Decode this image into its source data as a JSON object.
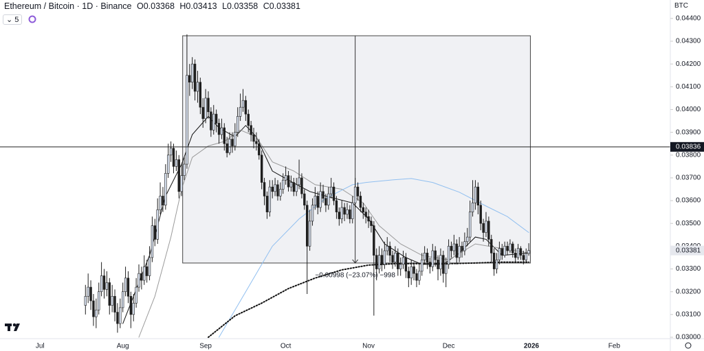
{
  "header": {
    "symbol": "Ethereum / Bitcoin · 1D · Binance",
    "ohlc_keys": [
      "O",
      "H",
      "L",
      "C"
    ],
    "indicator_count": "5",
    "currency": "BTC"
  },
  "chart_data": {
    "type": "candlestick",
    "open": [
      0.0314,
      0.0318,
      0.0322,
      0.0316,
      0.0309,
      0.0312,
      0.032,
      0.0327,
      0.0321,
      0.0324,
      0.0314,
      0.0318,
      0.0311,
      0.0306,
      0.0313,
      0.032,
      0.0326,
      0.0318,
      0.031,
      0.0315,
      0.0322,
      0.0328,
      0.0325,
      0.0331,
      0.0327,
      0.0335,
      0.0349,
      0.0343,
      0.0356,
      0.0362,
      0.0358,
      0.0372,
      0.038,
      0.0383,
      0.0375,
      0.0378,
      0.0364,
      0.0371,
      0.0376,
      0.0415,
      0.0412,
      0.042,
      0.0408,
      0.0412,
      0.0401,
      0.0396,
      0.0405,
      0.0399,
      0.0391,
      0.0398,
      0.0394,
      0.0389,
      0.0392,
      0.0385,
      0.0381,
      0.0387,
      0.0384,
      0.039,
      0.0397,
      0.0401,
      0.0404,
      0.0398,
      0.0393,
      0.0389,
      0.0386,
      0.0385,
      0.038,
      0.0368,
      0.0362,
      0.0355,
      0.0366,
      0.0364,
      0.0367,
      0.0362,
      0.0365,
      0.0369,
      0.0371,
      0.0366,
      0.0368,
      0.0364,
      0.0367,
      0.037,
      0.0363,
      0.0358,
      0.034,
      0.0351,
      0.0358,
      0.0362,
      0.0357,
      0.0364,
      0.0361,
      0.0358,
      0.0363,
      0.0366,
      0.036,
      0.0355,
      0.0352,
      0.0357,
      0.0354,
      0.0356,
      0.0352,
      0.0359,
      0.0366,
      0.0362,
      0.0357,
      0.0355,
      0.0353,
      0.0351,
      0.0349,
      0.0336,
      0.033,
      0.0336,
      0.0332,
      0.0338,
      0.034,
      0.0336,
      0.0333,
      0.0337,
      0.033,
      0.0332,
      0.0335,
      0.0329,
      0.0326,
      0.0331,
      0.0328,
      0.0325,
      0.0329,
      0.0334,
      0.0337,
      0.0333,
      0.0331,
      0.0338,
      0.0334,
      0.033,
      0.0336,
      0.0328,
      0.0332,
      0.034,
      0.0338,
      0.0341,
      0.0335,
      0.034,
      0.0338,
      0.0342,
      0.0344,
      0.0355,
      0.0359,
      0.0366,
      0.0358,
      0.035,
      0.0346,
      0.0351,
      0.0343,
      0.0337,
      0.033,
      0.0334,
      0.0339,
      0.0336,
      0.034,
      0.0338,
      0.0341,
      0.0337,
      0.0335,
      0.0339,
      0.0336,
      0.0334,
      0.03368
    ],
    "high": [
      0.0323,
      0.0328,
      0.0325,
      0.0319,
      0.0317,
      0.0324,
      0.0333,
      0.033,
      0.0329,
      0.0326,
      0.0323,
      0.0321,
      0.0315,
      0.0317,
      0.0324,
      0.0331,
      0.0329,
      0.032,
      0.0319,
      0.0326,
      0.0332,
      0.0331,
      0.0336,
      0.0334,
      0.034,
      0.0353,
      0.0352,
      0.0361,
      0.0368,
      0.0366,
      0.0376,
      0.0385,
      0.0386,
      0.0385,
      0.0382,
      0.038,
      0.0376,
      0.0379,
      0.0433,
      0.042,
      0.0423,
      0.0422,
      0.0417,
      0.0414,
      0.0405,
      0.0409,
      0.0408,
      0.0401,
      0.0402,
      0.04,
      0.0396,
      0.0396,
      0.0394,
      0.0388,
      0.039,
      0.039,
      0.0394,
      0.0401,
      0.0407,
      0.0409,
      0.0406,
      0.04,
      0.0395,
      0.0392,
      0.039,
      0.0387,
      0.0382,
      0.037,
      0.0364,
      0.0369,
      0.0369,
      0.037,
      0.0369,
      0.0368,
      0.0372,
      0.0375,
      0.0373,
      0.0371,
      0.037,
      0.037,
      0.0378,
      0.0372,
      0.0365,
      0.036,
      0.0356,
      0.0361,
      0.0366,
      0.0364,
      0.0368,
      0.0367,
      0.0363,
      0.0366,
      0.037,
      0.0368,
      0.0362,
      0.0357,
      0.036,
      0.0359,
      0.0359,
      0.0358,
      0.0362,
      0.037,
      0.0368,
      0.0364,
      0.0359,
      0.0357,
      0.0356,
      0.0353,
      0.0351,
      0.0339,
      0.034,
      0.0339,
      0.0342,
      0.0344,
      0.0342,
      0.0338,
      0.034,
      0.0339,
      0.0335,
      0.0338,
      0.0337,
      0.0331,
      0.0334,
      0.0333,
      0.033,
      0.0332,
      0.0337,
      0.034,
      0.0339,
      0.0335,
      0.0341,
      0.034,
      0.0336,
      0.0339,
      0.0338,
      0.0335,
      0.0343,
      0.0342,
      0.0345,
      0.0343,
      0.0344,
      0.0342,
      0.0346,
      0.0348,
      0.036,
      0.0369,
      0.0369,
      0.0368,
      0.036,
      0.0352,
      0.0355,
      0.0353,
      0.0345,
      0.0339,
      0.0337,
      0.0342,
      0.0341,
      0.0342,
      0.0342,
      0.0343,
      0.0342,
      0.0339,
      0.0341,
      0.034,
      0.0338,
      0.0339,
      0.03413
    ],
    "low": [
      0.031,
      0.0315,
      0.0312,
      0.0305,
      0.0304,
      0.031,
      0.0318,
      0.0317,
      0.0318,
      0.031,
      0.0311,
      0.0307,
      0.0302,
      0.0304,
      0.0311,
      0.0318,
      0.0315,
      0.0304,
      0.0307,
      0.0313,
      0.032,
      0.0321,
      0.0323,
      0.0324,
      0.0325,
      0.0333,
      0.034,
      0.0341,
      0.0354,
      0.0355,
      0.0356,
      0.037,
      0.0377,
      0.0372,
      0.0373,
      0.0361,
      0.0362,
      0.0369,
      0.0374,
      0.0406,
      0.0409,
      0.0404,
      0.0403,
      0.0398,
      0.0392,
      0.0394,
      0.0396,
      0.0388,
      0.0389,
      0.039,
      0.0385,
      0.0387,
      0.0382,
      0.0379,
      0.038,
      0.0381,
      0.0382,
      0.0388,
      0.0395,
      0.0399,
      0.0395,
      0.039,
      0.0386,
      0.0383,
      0.0382,
      0.0378,
      0.0365,
      0.0358,
      0.0352,
      0.0353,
      0.0361,
      0.0362,
      0.036,
      0.036,
      0.0363,
      0.0367,
      0.0364,
      0.0364,
      0.0362,
      0.0362,
      0.0365,
      0.0361,
      0.0356,
      0.0319,
      0.0338,
      0.0349,
      0.0356,
      0.0354,
      0.0355,
      0.0359,
      0.0355,
      0.0356,
      0.0361,
      0.0358,
      0.0352,
      0.0349,
      0.035,
      0.0351,
      0.0352,
      0.035,
      0.035,
      0.0357,
      0.036,
      0.0355,
      0.0352,
      0.035,
      0.0348,
      0.0346,
      0.03095,
      0.0325,
      0.0328,
      0.0329,
      0.033,
      0.0336,
      0.0333,
      0.033,
      0.0331,
      0.0327,
      0.0327,
      0.033,
      0.0326,
      0.0322,
      0.0323,
      0.0325,
      0.0322,
      0.0323,
      0.0327,
      0.0332,
      0.033,
      0.0328,
      0.0329,
      0.0331,
      0.0325,
      0.0327,
      0.0324,
      0.0322,
      0.033,
      0.0335,
      0.0336,
      0.0332,
      0.0333,
      0.0335,
      0.0336,
      0.034,
      0.0342,
      0.0353,
      0.0356,
      0.0354,
      0.0347,
      0.0342,
      0.0344,
      0.034,
      0.0333,
      0.0327,
      0.0328,
      0.0332,
      0.0334,
      0.0335,
      0.0336,
      0.0337,
      0.0335,
      0.0333,
      0.0334,
      0.0334,
      0.0332,
      0.0333,
      0.03358
    ],
    "close": [
      0.0318,
      0.0322,
      0.0316,
      0.0309,
      0.0312,
      0.032,
      0.0327,
      0.0321,
      0.0324,
      0.0314,
      0.0318,
      0.0311,
      0.0306,
      0.0313,
      0.032,
      0.0326,
      0.0318,
      0.031,
      0.0315,
      0.0322,
      0.0328,
      0.0325,
      0.0331,
      0.0327,
      0.0335,
      0.0349,
      0.0343,
      0.0356,
      0.0362,
      0.0358,
      0.0372,
      0.038,
      0.0383,
      0.0375,
      0.0378,
      0.0364,
      0.0371,
      0.0376,
      0.0415,
      0.0412,
      0.042,
      0.0408,
      0.0412,
      0.0401,
      0.0396,
      0.0405,
      0.0399,
      0.0391,
      0.0398,
      0.0394,
      0.0389,
      0.0392,
      0.0385,
      0.0381,
      0.0387,
      0.0384,
      0.039,
      0.0397,
      0.0401,
      0.0404,
      0.0398,
      0.0393,
      0.0389,
      0.0386,
      0.0385,
      0.038,
      0.0368,
      0.0362,
      0.0355,
      0.0366,
      0.0364,
      0.0367,
      0.0362,
      0.0365,
      0.0369,
      0.0371,
      0.0366,
      0.0368,
      0.0364,
      0.0367,
      0.037,
      0.0363,
      0.0358,
      0.034,
      0.0351,
      0.0358,
      0.0362,
      0.0357,
      0.0364,
      0.0361,
      0.0358,
      0.0363,
      0.0366,
      0.036,
      0.0355,
      0.0352,
      0.0357,
      0.0354,
      0.0356,
      0.0352,
      0.0359,
      0.0366,
      0.0362,
      0.0357,
      0.0355,
      0.0353,
      0.0351,
      0.0349,
      0.0336,
      0.033,
      0.0336,
      0.0332,
      0.0338,
      0.034,
      0.0336,
      0.0333,
      0.0337,
      0.033,
      0.0332,
      0.0335,
      0.0329,
      0.0326,
      0.0331,
      0.0328,
      0.0325,
      0.0329,
      0.0334,
      0.0337,
      0.0333,
      0.0331,
      0.0338,
      0.0334,
      0.033,
      0.0336,
      0.0328,
      0.0332,
      0.034,
      0.0338,
      0.0341,
      0.0335,
      0.034,
      0.0338,
      0.0342,
      0.0344,
      0.0355,
      0.0359,
      0.0366,
      0.0358,
      0.035,
      0.0346,
      0.0351,
      0.0343,
      0.0337,
      0.033,
      0.0334,
      0.0339,
      0.0336,
      0.034,
      0.0338,
      0.0341,
      0.0337,
      0.0335,
      0.0339,
      0.0336,
      0.0334,
      0.03368,
      0.03381
    ],
    "up_color": "#d9e2f1",
    "down_color": "#1e1e1e",
    "outline_color": "#1e1e1e",
    "ylim": [
      0.02994,
      0.04481
    ],
    "yticks": [
      {
        "value": 0.03,
        "label": "0.03000"
      },
      {
        "value": 0.031,
        "label": "0.03100"
      },
      {
        "value": 0.032,
        "label": "0.03200"
      },
      {
        "value": 0.033,
        "label": "0.03300"
      },
      {
        "value": 0.034,
        "label": "0.03400"
      },
      {
        "value": 0.035,
        "label": "0.03500"
      },
      {
        "value": 0.036,
        "label": "0.03600"
      },
      {
        "value": 0.037,
        "label": "0.03700"
      },
      {
        "value": 0.038,
        "label": "0.03800"
      },
      {
        "value": 0.039,
        "label": "0.03900"
      },
      {
        "value": 0.04,
        "label": "0.04000"
      },
      {
        "value": 0.041,
        "label": "0.04100"
      },
      {
        "value": 0.042,
        "label": "0.04200"
      },
      {
        "value": 0.043,
        "label": "0.04300"
      },
      {
        "value": 0.044,
        "label": "0.04400"
      }
    ],
    "xlim": [
      -32,
      219
    ],
    "xticks": [
      {
        "value": -17,
        "label": "Jul"
      },
      {
        "value": 14,
        "label": "Aug"
      },
      {
        "value": 45,
        "label": "Sep"
      },
      {
        "value": 75,
        "label": "Oct"
      },
      {
        "value": 106,
        "label": "Nov"
      },
      {
        "value": 136,
        "label": "Dec"
      },
      {
        "value": 167,
        "label": "2026",
        "bold": true
      },
      {
        "value": 198,
        "label": "Feb"
      }
    ],
    "lines": [
      {
        "color": "#111111",
        "style": "solid",
        "x": [
          14,
          24,
          30,
          36,
          40,
          46,
          50,
          56,
          60,
          64,
          70,
          76,
          84,
          90,
          100,
          106,
          112,
          120,
          126,
          134,
          140,
          146,
          150,
          156,
          166
        ],
        "values": [
          0.0306,
          0.0336,
          0.0362,
          0.0376,
          0.0389,
          0.0397,
          0.0392,
          0.0388,
          0.0393,
          0.0388,
          0.0373,
          0.0369,
          0.0364,
          0.0362,
          0.0359,
          0.0352,
          0.0341,
          0.0335,
          0.0332,
          0.0332,
          0.0337,
          0.0344,
          0.0343,
          0.0336,
          0.0337
        ]
      },
      {
        "color": "#9a9a9a",
        "style": "solid",
        "x": [
          20,
          26,
          32,
          36,
          40,
          46,
          52,
          58,
          64,
          70,
          78,
          86,
          96,
          104,
          110,
          118,
          126,
          136,
          146,
          156,
          166
        ],
        "values": [
          0.03,
          0.0318,
          0.0344,
          0.0365,
          0.0379,
          0.0384,
          0.0386,
          0.0391,
          0.0388,
          0.0377,
          0.0373,
          0.0367,
          0.0365,
          0.0359,
          0.0349,
          0.0341,
          0.0336,
          0.0334,
          0.0341,
          0.0339,
          0.0337
        ]
      },
      {
        "color": "#90bff0",
        "style": "solid",
        "x": [
          50,
          60,
          70,
          80,
          90,
          100,
          105,
          115,
          122,
          130,
          140,
          150,
          158,
          166
        ],
        "values": [
          0.03,
          0.032,
          0.034,
          0.0352,
          0.0361,
          0.0367,
          0.0368,
          0.03691,
          0.03697,
          0.0368,
          0.03637,
          0.03576,
          0.0353,
          0.0346
        ]
      },
      {
        "color": "#111111",
        "style": "dotted",
        "x": [
          46,
          56,
          66,
          76,
          86,
          96,
          106,
          116,
          126,
          136,
          146,
          156,
          166
        ],
        "values": [
          0.03,
          0.03094,
          0.0315,
          0.03214,
          0.0326,
          0.03296,
          0.03317,
          0.03323,
          0.03323,
          0.03323,
          0.03326,
          0.0333,
          0.0333
        ]
      }
    ],
    "crosshair": 0.03836,
    "measure": {
      "x": [
        36.4,
        166.6
      ],
      "y": [
        0.04324,
        0.03326
      ],
      "arrow_x": 101,
      "label": "−0.00998 (−23.07%) −998"
    }
  }
}
